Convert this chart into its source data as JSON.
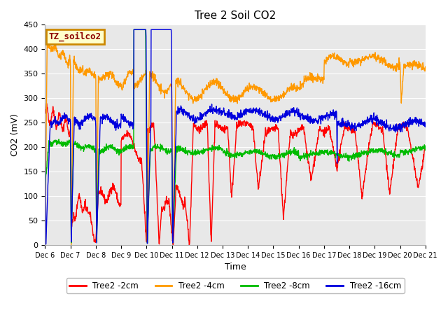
{
  "title": "Tree 2 Soil CO2",
  "ylabel": "CO2 (mV)",
  "xlabel": "Time",
  "ylim": [
    0,
    450
  ],
  "background_color": "#ffffff",
  "plot_bg_color": "#e8e8e8",
  "grid_color": "#ffffff",
  "legend_label": "TZ_soilco2",
  "legend_box_facecolor": "#ffffcc",
  "legend_box_edgecolor": "#cc8800",
  "series_colors": {
    "2cm": "#ff0000",
    "4cm": "#ff9900",
    "8cm": "#00bb00",
    "16cm": "#0000dd"
  },
  "series_labels": [
    "Tree2 -2cm",
    "Tree2 -4cm",
    "Tree2 -8cm",
    "Tree2 -16cm"
  ],
  "tick_labels": [
    "Dec 6",
    "Dec 7",
    "Dec 8",
    "Dec 9",
    "Dec 10",
    "Dec 11",
    "Dec 12",
    "Dec 13",
    "Dec 14",
    "Dec 15",
    "Dec 16",
    "Dec 17",
    "Dec 18",
    "Dec 19",
    "Dec 20",
    "Dec 21"
  ],
  "yticks": [
    0,
    50,
    100,
    150,
    200,
    250,
    300,
    350,
    400,
    450
  ]
}
